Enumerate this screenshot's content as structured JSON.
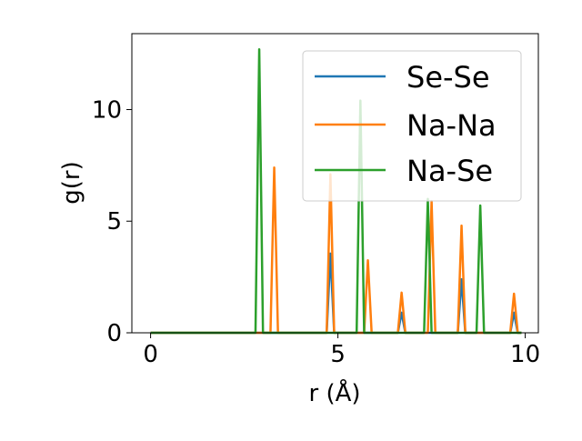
{
  "chart_data": {
    "type": "line",
    "xlabel": "r (Å)",
    "ylabel": "g(r)",
    "xlim": [
      -0.5,
      10.35
    ],
    "ylim": [
      0,
      13.4
    ],
    "xticks": [
      {
        "value": 0,
        "label": "0"
      },
      {
        "value": 5,
        "label": "5"
      },
      {
        "value": 10,
        "label": "10"
      }
    ],
    "yticks": [
      {
        "value": 0,
        "label": "0"
      },
      {
        "value": 5,
        "label": "5"
      },
      {
        "value": 10,
        "label": "10"
      }
    ],
    "grid": false,
    "legend_position": "top-right",
    "series": [
      {
        "name": "Se-Se",
        "color": "#1f77b4",
        "x": [
          0,
          4.7,
          4.8,
          4.9,
          6.6,
          6.7,
          6.8,
          8.2,
          8.3,
          8.4,
          9.6,
          9.7,
          9.8,
          9.9
        ],
        "y": [
          0,
          0,
          3.55,
          0,
          0,
          0.9,
          0,
          0,
          2.4,
          0,
          0,
          0.9,
          0,
          0
        ]
      },
      {
        "name": "Na-Na",
        "color": "#ff7f0e",
        "x": [
          0,
          3.2,
          3.3,
          3.4,
          4.7,
          4.8,
          4.9,
          5.7,
          5.8,
          5.9,
          6.6,
          6.7,
          6.8,
          7.4,
          7.5,
          7.6,
          8.2,
          8.3,
          8.4,
          9.6,
          9.7,
          9.8,
          9.9
        ],
        "y": [
          0,
          0,
          7.4,
          0,
          0,
          7.1,
          0,
          0,
          3.25,
          0,
          0,
          1.8,
          0,
          0,
          5.9,
          0,
          0,
          4.8,
          0,
          0,
          1.75,
          0,
          0
        ]
      },
      {
        "name": "Na-Se",
        "color": "#2ca02c",
        "x": [
          0,
          2.8,
          2.9,
          3.0,
          5.5,
          5.6,
          5.7,
          7.3,
          7.4,
          7.5,
          8.7,
          8.8,
          8.9,
          9.9
        ],
        "y": [
          0,
          0,
          12.7,
          0,
          0,
          10.4,
          0,
          0,
          6.0,
          0,
          0,
          5.7,
          0,
          0
        ]
      }
    ]
  }
}
